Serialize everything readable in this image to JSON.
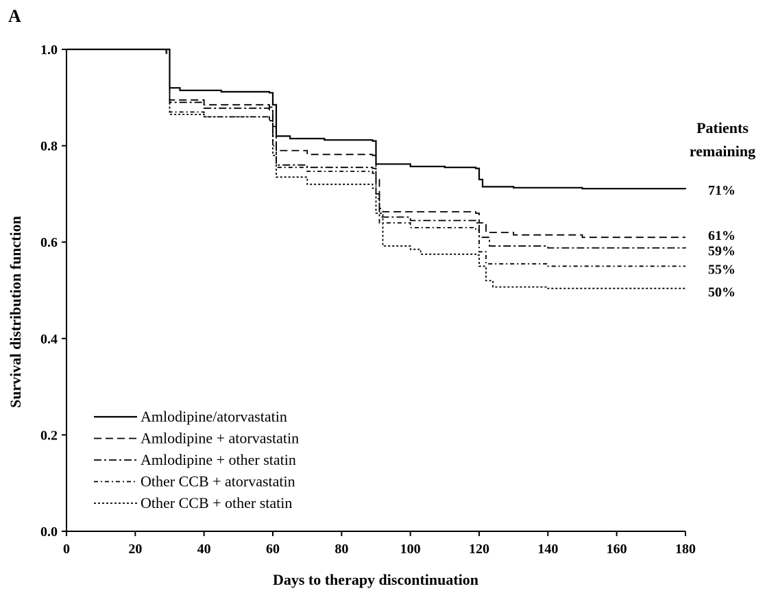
{
  "panel_label": "A",
  "chart_data": {
    "type": "line",
    "step": true,
    "title": "",
    "xlabel": "Days to therapy discontinuation",
    "ylabel": "Survival distribution function",
    "xlim": [
      0,
      180
    ],
    "ylim": [
      0.0,
      1.0
    ],
    "xticks": [
      0,
      20,
      40,
      60,
      80,
      100,
      120,
      140,
      160,
      180
    ],
    "xtick_labels": [
      "0",
      "20",
      "40",
      "60",
      "80",
      "100",
      "120",
      "140",
      "160",
      "180"
    ],
    "yticks": [
      0.0,
      0.2,
      0.4,
      0.6,
      0.8,
      1.0
    ],
    "ytick_labels": [
      "0.0",
      "0.2",
      "0.4",
      "0.6",
      "0.8",
      "1.0"
    ],
    "grid": false,
    "legend_position": "bottom-left",
    "annotation": [
      "Patients",
      "remaining"
    ],
    "series": [
      {
        "name": "Amlodipine/atorvastatin",
        "dash": "solid",
        "end_label": "71%",
        "points": [
          [
            0,
            1.0
          ],
          [
            29,
            1.0
          ],
          [
            30,
            0.92
          ],
          [
            33,
            0.915
          ],
          [
            45,
            0.912
          ],
          [
            59,
            0.91
          ],
          [
            60,
            0.885
          ],
          [
            61,
            0.82
          ],
          [
            65,
            0.815
          ],
          [
            75,
            0.812
          ],
          [
            89,
            0.81
          ],
          [
            90,
            0.762
          ],
          [
            100,
            0.757
          ],
          [
            110,
            0.755
          ],
          [
            119,
            0.753
          ],
          [
            120,
            0.73
          ],
          [
            121,
            0.715
          ],
          [
            130,
            0.713
          ],
          [
            150,
            0.711
          ],
          [
            180,
            0.71
          ]
        ]
      },
      {
        "name": "Amlodipine + atorvastatin",
        "dash": "dash",
        "end_label": "61%",
        "points": [
          [
            0,
            1.0
          ],
          [
            29,
            0.998
          ],
          [
            30,
            0.895
          ],
          [
            40,
            0.885
          ],
          [
            59,
            0.88
          ],
          [
            60,
            0.84
          ],
          [
            61,
            0.79
          ],
          [
            70,
            0.782
          ],
          [
            89,
            0.78
          ],
          [
            90,
            0.73
          ],
          [
            91,
            0.67
          ],
          [
            92,
            0.663
          ],
          [
            119,
            0.66
          ],
          [
            120,
            0.64
          ],
          [
            122,
            0.62
          ],
          [
            130,
            0.615
          ],
          [
            150,
            0.61
          ],
          [
            180,
            0.61
          ]
        ]
      },
      {
        "name": "Amlodipine + other statin",
        "dash": "dashdot",
        "end_label": "59%",
        "points": [
          [
            0,
            1.0
          ],
          [
            29,
            0.996
          ],
          [
            30,
            0.89
          ],
          [
            40,
            0.878
          ],
          [
            59,
            0.873
          ],
          [
            60,
            0.82
          ],
          [
            61,
            0.76
          ],
          [
            70,
            0.755
          ],
          [
            89,
            0.753
          ],
          [
            90,
            0.7
          ],
          [
            91,
            0.652
          ],
          [
            100,
            0.645
          ],
          [
            119,
            0.64
          ],
          [
            120,
            0.61
          ],
          [
            123,
            0.592
          ],
          [
            140,
            0.588
          ],
          [
            180,
            0.587
          ]
        ]
      },
      {
        "name": "Other CCB + atorvastatin",
        "dash": "longdashdot",
        "end_label": "55%",
        "points": [
          [
            0,
            1.0
          ],
          [
            29,
            0.994
          ],
          [
            30,
            0.87
          ],
          [
            40,
            0.86
          ],
          [
            59,
            0.852
          ],
          [
            60,
            0.8
          ],
          [
            61,
            0.755
          ],
          [
            70,
            0.747
          ],
          [
            89,
            0.743
          ],
          [
            90,
            0.69
          ],
          [
            91,
            0.64
          ],
          [
            100,
            0.63
          ],
          [
            119,
            0.625
          ],
          [
            120,
            0.58
          ],
          [
            122,
            0.555
          ],
          [
            140,
            0.55
          ],
          [
            180,
            0.55
          ]
        ]
      },
      {
        "name": "Other CCB + other statin",
        "dash": "dot",
        "end_label": "50%",
        "points": [
          [
            0,
            1.0
          ],
          [
            29,
            0.992
          ],
          [
            30,
            0.865
          ],
          [
            40,
            0.86
          ],
          [
            59,
            0.855
          ],
          [
            60,
            0.78
          ],
          [
            61,
            0.735
          ],
          [
            70,
            0.72
          ],
          [
            89,
            0.712
          ],
          [
            90,
            0.66
          ],
          [
            92,
            0.592
          ],
          [
            100,
            0.585
          ],
          [
            103,
            0.575
          ],
          [
            119,
            0.573
          ],
          [
            120,
            0.55
          ],
          [
            122,
            0.52
          ],
          [
            124,
            0.507
          ],
          [
            140,
            0.504
          ],
          [
            180,
            0.503
          ]
        ]
      }
    ]
  }
}
